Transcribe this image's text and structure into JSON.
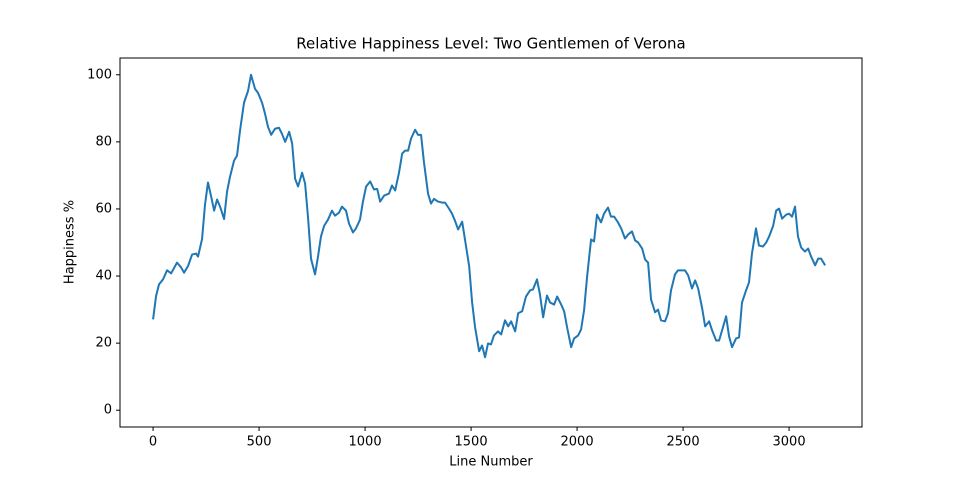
{
  "chart_data": {
    "type": "line",
    "title": "Relative Happiness Level: Two Gentlemen of Verona",
    "x_label": "Line Number",
    "y_label": "Happiness %",
    "xlim": [
      -156,
      3344
    ],
    "ylim": [
      -5,
      105
    ],
    "xticks": [
      0,
      500,
      1000,
      1500,
      2000,
      2500,
      3000
    ],
    "yticks": [
      0,
      20,
      40,
      60,
      80,
      100
    ],
    "grid": false,
    "x": [
      0,
      14,
      28,
      47,
      66,
      85,
      113,
      132,
      146,
      165,
      184,
      203,
      212,
      231,
      245,
      259,
      274,
      288,
      302,
      316,
      335,
      349,
      363,
      382,
      396,
      410,
      429,
      448,
      462,
      481,
      495,
      514,
      528,
      542,
      557,
      575,
      594,
      608,
      623,
      642,
      656,
      670,
      684,
      703,
      717,
      731,
      745,
      764,
      778,
      792,
      807,
      825,
      844,
      858,
      877,
      891,
      910,
      924,
      943,
      957,
      976,
      990,
      1005,
      1024,
      1042,
      1057,
      1071,
      1090,
      1113,
      1127,
      1142,
      1160,
      1175,
      1189,
      1203,
      1217,
      1236,
      1250,
      1264,
      1278,
      1297,
      1311,
      1325,
      1344,
      1363,
      1377,
      1396,
      1410,
      1424,
      1439,
      1458,
      1472,
      1491,
      1505,
      1519,
      1538,
      1552,
      1566,
      1580,
      1594,
      1608,
      1627,
      1642,
      1660,
      1675,
      1689,
      1708,
      1722,
      1741,
      1759,
      1778,
      1792,
      1811,
      1825,
      1840,
      1858,
      1873,
      1892,
      1906,
      1925,
      1939,
      1953,
      1972,
      1986,
      2005,
      2019,
      2033,
      2047,
      2066,
      2080,
      2094,
      2113,
      2127,
      2146,
      2160,
      2175,
      2193,
      2208,
      2226,
      2241,
      2259,
      2274,
      2288,
      2307,
      2321,
      2335,
      2349,
      2368,
      2382,
      2396,
      2415,
      2429,
      2443,
      2462,
      2476,
      2495,
      2509,
      2524,
      2542,
      2557,
      2571,
      2590,
      2604,
      2623,
      2637,
      2656,
      2670,
      2684,
      2703,
      2717,
      2731,
      2750,
      2764,
      2778,
      2797,
      2811,
      2825,
      2844,
      2858,
      2877,
      2892,
      2906,
      2925,
      2939,
      2953,
      2967,
      2986,
      3000,
      3014,
      3028,
      3042,
      3057,
      3075,
      3090,
      3104,
      3123,
      3137,
      3151,
      3170
    ],
    "series": [
      {
        "color": "#1f77b4",
        "values": [
          27.1,
          34,
          37.5,
          39,
          41.7,
          40.8,
          44,
          42.6,
          41,
          43,
          46.4,
          46.7,
          45.8,
          51,
          61.3,
          67.9,
          63.7,
          59.5,
          62.8,
          60.7,
          57,
          65.2,
          69.6,
          74.4,
          75.9,
          83.3,
          91.7,
          95.2,
          100,
          95.8,
          94.6,
          91.7,
          88.4,
          84.5,
          82.1,
          83.9,
          84.2,
          82.4,
          80,
          83,
          79.5,
          69,
          66.7,
          70.8,
          67.6,
          57.4,
          45.2,
          40.5,
          45.8,
          51.8,
          55,
          56.8,
          59.5,
          58,
          58.9,
          60.7,
          59.5,
          55.7,
          53,
          54.2,
          56.8,
          62.2,
          66.7,
          68.2,
          65.8,
          66,
          62.2,
          64,
          64.6,
          67,
          65.5,
          70.8,
          76.5,
          77.4,
          77.4,
          81,
          83.6,
          82.1,
          82.1,
          73.8,
          64.6,
          61.6,
          63,
          62.2,
          61.9,
          61.9,
          60.1,
          58.6,
          56.5,
          53.9,
          56.2,
          50.6,
          42.9,
          32.1,
          24.7,
          17.6,
          19.3,
          15.8,
          19.9,
          19.6,
          22.3,
          23.5,
          22.6,
          26.8,
          25,
          26.5,
          23.5,
          28.9,
          29.5,
          33.9,
          35.7,
          36,
          39,
          34.5,
          27.7,
          34.2,
          32.1,
          31.5,
          33.9,
          31.5,
          29.5,
          24.7,
          18.8,
          21.4,
          22.3,
          24.1,
          29.8,
          39.6,
          50.9,
          50.3,
          58.3,
          56,
          58.6,
          60.4,
          57.7,
          57.7,
          56,
          54.2,
          51.2,
          52.4,
          53.3,
          50.6,
          50,
          48.2,
          44.9,
          44,
          33,
          29.2,
          30,
          26.8,
          26.5,
          28.9,
          35.7,
          40.5,
          41.7,
          41.7,
          41.7,
          40.2,
          36.3,
          38.7,
          36.3,
          30.4,
          25,
          26.5,
          23.8,
          20.8,
          20.8,
          23.8,
          28,
          22,
          18.8,
          21.4,
          21.7,
          32.1,
          35.7,
          38.1,
          46.7,
          54.2,
          49.1,
          48.8,
          50,
          51.8,
          55,
          59.5,
          60.1,
          57.1,
          58.3,
          58.6,
          57.7,
          60.7,
          51.8,
          48.5,
          47.3,
          48.2,
          45.8,
          43.2,
          45.2,
          45.2,
          43.2
        ]
      }
    ]
  }
}
